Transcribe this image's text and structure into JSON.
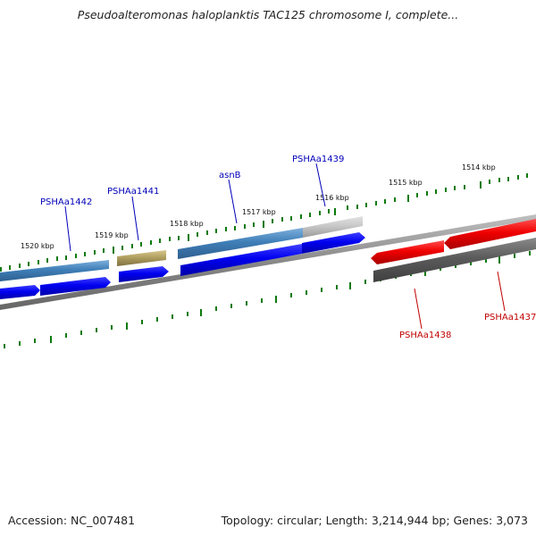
{
  "title": "Pseudoalteromonas haloplanktis TAC125 chromosome I, complete...",
  "footer": {
    "accession": "Accession: NC_007481",
    "summary": "Topology: circular; Length: 3,214,944 bp; Genes: 3,073"
  },
  "scale_labels": [
    "1520 kbp",
    "1519 kbp",
    "1518 kbp",
    "1517 kbp",
    "1516 kbp",
    "1515 kbp",
    "1514 kbp"
  ],
  "upper_genes": [
    "PSHAa1442",
    "PSHAa1441",
    "asnB",
    "PSHAa1439"
  ],
  "lower_genes": [
    "PSHAa1438",
    "PSHAa1437"
  ],
  "colors": {
    "forward_label": "#0000b8",
    "reverse_label": "#c00000",
    "forward_cds": "#0000f0",
    "reverse_cds": "#f00000",
    "feature_blue": "#3f7fb8",
    "feature_olive": "#b0a060",
    "feature_gray": "#c8c8c8",
    "feature_dark": "#5b5b5b",
    "ticks": "#0c7a0c",
    "backbone": "#777777"
  }
}
